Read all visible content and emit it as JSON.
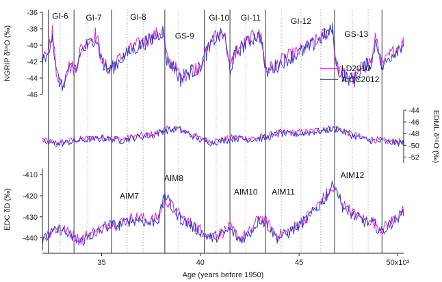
{
  "chart_data": {
    "type": "line",
    "x_axis": {
      "label": "Age (years before 1950)",
      "range": [
        32000,
        50300
      ],
      "ticks": [
        35000,
        40000,
        45000,
        50000
      ],
      "tick_labels": [
        "35",
        "40",
        "45",
        "50x10³"
      ]
    },
    "panels": [
      {
        "id": "ngrip",
        "ylabel": "NGRIP δ¹⁸O (‰)",
        "axis_side": "left",
        "ylim": [
          -46,
          -36
        ],
        "ticks": [
          -46,
          -44,
          -42,
          -40,
          -38,
          -36
        ],
        "tick_labels": [
          "-46",
          "-44",
          "-42",
          "-40",
          "-38",
          "-36"
        ]
      },
      {
        "id": "edml",
        "ylabel": "EDML δ¹⁸O (‰)",
        "axis_side": "right",
        "ylim": [
          -53,
          -44
        ],
        "ticks": [
          -52,
          -50,
          -48,
          -46,
          -44
        ],
        "tick_labels": [
          "-52",
          "-50",
          "-48",
          "-46",
          "-44"
        ]
      },
      {
        "id": "edc",
        "ylabel": "EDC δD (‰)",
        "axis_side": "left",
        "ylim": [
          -446,
          -407
        ],
        "ticks": [
          -440,
          -430,
          -420,
          -410
        ],
        "tick_labels": [
          "-440",
          "-430",
          "-420",
          "-410"
        ]
      }
    ],
    "series": [
      {
        "name": "LD2010",
        "color": "#e020d0",
        "panel_keypoints": {
          "ngrip": [
            [
              32000,
              -41.8
            ],
            [
              32200,
              -41.5
            ],
            [
              32500,
              -38.2
            ],
            [
              32700,
              -43.2
            ],
            [
              33000,
              -44.8
            ],
            [
              33300,
              -42.6
            ],
            [
              33700,
              -42.8
            ],
            [
              33900,
              -40.6
            ],
            [
              34300,
              -39.6
            ],
            [
              34700,
              -38.6
            ],
            [
              35100,
              -42.4
            ],
            [
              35400,
              -42.9
            ],
            [
              35700,
              -42.2
            ],
            [
              36100,
              -41.2
            ],
            [
              36600,
              -40.3
            ],
            [
              37100,
              -39.6
            ],
            [
              37600,
              -39.0
            ],
            [
              38100,
              -38.1
            ],
            [
              38300,
              -41.6
            ],
            [
              38700,
              -42.6
            ],
            [
              39000,
              -44.0
            ],
            [
              39500,
              -43.0
            ],
            [
              39900,
              -42.7
            ],
            [
              40300,
              -40.8
            ],
            [
              40700,
              -39.0
            ],
            [
              41200,
              -38.3
            ],
            [
              41500,
              -42.8
            ],
            [
              41800,
              -40.7
            ],
            [
              42300,
              -39.7
            ],
            [
              42800,
              -38.7
            ],
            [
              43100,
              -38.9
            ],
            [
              43300,
              -43.2
            ],
            [
              43800,
              -42.4
            ],
            [
              44300,
              -41.6
            ],
            [
              44800,
              -41.0
            ],
            [
              45300,
              -40.4
            ],
            [
              45800,
              -39.6
            ],
            [
              46300,
              -38.6
            ],
            [
              46700,
              -37.9
            ],
            [
              46900,
              -42.6
            ],
            [
              47300,
              -43.6
            ],
            [
              47800,
              -44.1
            ],
            [
              48300,
              -42.4
            ],
            [
              48700,
              -41.8
            ],
            [
              48900,
              -38.8
            ],
            [
              49200,
              -42.6
            ],
            [
              49600,
              -41.2
            ],
            [
              50000,
              -40.2
            ],
            [
              50300,
              -39.6
            ]
          ],
          "edml": [
            [
              32000,
              -49.2
            ],
            [
              32800,
              -49.6
            ],
            [
              33600,
              -49.1
            ],
            [
              34400,
              -48.8
            ],
            [
              35200,
              -48.6
            ],
            [
              36000,
              -49.0
            ],
            [
              36800,
              -48.4
            ],
            [
              37600,
              -48.1
            ],
            [
              38100,
              -47.4
            ],
            [
              38800,
              -47.0
            ],
            [
              39400,
              -47.8
            ],
            [
              40000,
              -48.9
            ],
            [
              40600,
              -49.3
            ],
            [
              41200,
              -49.0
            ],
            [
              41800,
              -48.6
            ],
            [
              42500,
              -48.8
            ],
            [
              43200,
              -48.6
            ],
            [
              44000,
              -47.8
            ],
            [
              44800,
              -47.9
            ],
            [
              45600,
              -47.6
            ],
            [
              46400,
              -47.2
            ],
            [
              46900,
              -47.0
            ],
            [
              47600,
              -48.0
            ],
            [
              48300,
              -48.8
            ],
            [
              49000,
              -49.1
            ],
            [
              49600,
              -49.3
            ],
            [
              50300,
              -49.4
            ]
          ],
          "edc": [
            [
              32000,
              -440
            ],
            [
              32400,
              -437
            ],
            [
              32900,
              -435
            ],
            [
              33400,
              -438
            ],
            [
              33900,
              -441
            ],
            [
              34400,
              -438
            ],
            [
              34900,
              -436
            ],
            [
              35400,
              -433
            ],
            [
              35900,
              -433
            ],
            [
              36400,
              -431
            ],
            [
              36900,
              -430
            ],
            [
              37400,
              -432
            ],
            [
              37900,
              -430
            ],
            [
              38200,
              -422
            ],
            [
              38500,
              -424
            ],
            [
              39000,
              -430
            ],
            [
              39500,
              -433
            ],
            [
              40000,
              -436
            ],
            [
              40500,
              -439
            ],
            [
              41000,
              -438
            ],
            [
              41500,
              -435
            ],
            [
              42000,
              -440
            ],
            [
              42500,
              -437
            ],
            [
              43000,
              -430
            ],
            [
              43400,
              -433
            ],
            [
              43900,
              -439
            ],
            [
              44400,
              -437
            ],
            [
              44900,
              -434
            ],
            [
              45400,
              -430
            ],
            [
              45900,
              -425
            ],
            [
              46400,
              -419
            ],
            [
              46800,
              -417
            ],
            [
              47200,
              -424
            ],
            [
              47700,
              -428
            ],
            [
              48200,
              -431
            ],
            [
              48700,
              -432
            ],
            [
              49200,
              -436
            ],
            [
              49700,
              -432
            ],
            [
              50300,
              -427
            ]
          ]
        }
      },
      {
        "name": "AICC2012",
        "color": "#2a3fbf",
        "panel_keypoints": {
          "ngrip": [
            [
              32000,
              -42.0
            ],
            [
              32200,
              -41.7
            ],
            [
              32500,
              -38.6
            ],
            [
              32700,
              -43.4
            ],
            [
              33000,
              -45.2
            ],
            [
              33300,
              -43.0
            ],
            [
              33700,
              -43.2
            ],
            [
              33900,
              -41.0
            ],
            [
              34300,
              -40.0
            ],
            [
              34700,
              -39.0
            ],
            [
              35100,
              -42.6
            ],
            [
              35400,
              -43.1
            ],
            [
              35700,
              -42.4
            ],
            [
              36100,
              -41.4
            ],
            [
              36600,
              -40.5
            ],
            [
              37100,
              -39.8
            ],
            [
              37600,
              -39.2
            ],
            [
              38100,
              -38.3
            ],
            [
              38300,
              -41.8
            ],
            [
              38700,
              -42.8
            ],
            [
              39000,
              -44.2
            ],
            [
              39500,
              -43.2
            ],
            [
              39900,
              -42.9
            ],
            [
              40300,
              -41.0
            ],
            [
              40700,
              -39.3
            ],
            [
              41200,
              -38.6
            ],
            [
              41500,
              -43.0
            ],
            [
              41800,
              -40.9
            ],
            [
              42300,
              -39.9
            ],
            [
              42800,
              -38.9
            ],
            [
              43100,
              -39.1
            ],
            [
              43300,
              -43.4
            ],
            [
              43800,
              -42.6
            ],
            [
              44300,
              -41.8
            ],
            [
              44800,
              -41.2
            ],
            [
              45300,
              -40.6
            ],
            [
              45800,
              -39.8
            ],
            [
              46300,
              -38.8
            ],
            [
              46700,
              -38.1
            ],
            [
              46900,
              -42.8
            ],
            [
              47300,
              -43.8
            ],
            [
              47800,
              -44.3
            ],
            [
              48300,
              -42.6
            ],
            [
              48700,
              -42.0
            ],
            [
              48900,
              -39.0
            ],
            [
              49200,
              -42.8
            ],
            [
              49600,
              -41.4
            ],
            [
              50000,
              -40.4
            ],
            [
              50300,
              -39.8
            ]
          ],
          "edml": [
            [
              32000,
              -49.4
            ],
            [
              32800,
              -49.8
            ],
            [
              33600,
              -49.3
            ],
            [
              34400,
              -49.0
            ],
            [
              35200,
              -48.8
            ],
            [
              36000,
              -49.2
            ],
            [
              36800,
              -48.6
            ],
            [
              37600,
              -48.3
            ],
            [
              38100,
              -47.6
            ],
            [
              38800,
              -47.2
            ],
            [
              39400,
              -48.0
            ],
            [
              40000,
              -49.1
            ],
            [
              40600,
              -49.5
            ],
            [
              41200,
              -49.2
            ],
            [
              41800,
              -48.8
            ],
            [
              42500,
              -49.0
            ],
            [
              43200,
              -48.8
            ],
            [
              44000,
              -48.0
            ],
            [
              44800,
              -48.1
            ],
            [
              45600,
              -47.8
            ],
            [
              46400,
              -47.4
            ],
            [
              46900,
              -47.2
            ],
            [
              47600,
              -48.2
            ],
            [
              48300,
              -49.0
            ],
            [
              49000,
              -49.3
            ],
            [
              49600,
              -49.5
            ],
            [
              50300,
              -49.6
            ]
          ],
          "edc": [
            [
              32000,
              -442
            ],
            [
              32400,
              -438
            ],
            [
              32900,
              -436
            ],
            [
              33400,
              -439
            ],
            [
              33900,
              -442
            ],
            [
              34400,
              -439
            ],
            [
              34900,
              -437
            ],
            [
              35400,
              -434
            ],
            [
              35900,
              -434
            ],
            [
              36400,
              -432
            ],
            [
              36900,
              -431
            ],
            [
              37400,
              -433
            ],
            [
              37900,
              -431
            ],
            [
              38200,
              -419
            ],
            [
              38500,
              -425
            ],
            [
              39000,
              -431
            ],
            [
              39500,
              -434
            ],
            [
              40000,
              -437
            ],
            [
              40500,
              -440
            ],
            [
              41000,
              -439
            ],
            [
              41500,
              -436
            ],
            [
              42000,
              -441
            ],
            [
              42500,
              -438
            ],
            [
              43000,
              -431
            ],
            [
              43400,
              -434
            ],
            [
              43900,
              -440
            ],
            [
              44400,
              -438
            ],
            [
              44900,
              -435
            ],
            [
              45400,
              -431
            ],
            [
              45900,
              -426
            ],
            [
              46400,
              -420
            ],
            [
              46800,
              -414
            ],
            [
              47200,
              -425
            ],
            [
              47700,
              -429
            ],
            [
              48200,
              -432
            ],
            [
              48700,
              -433
            ],
            [
              49200,
              -437
            ],
            [
              49700,
              -433
            ],
            [
              50300,
              -428
            ]
          ]
        }
      }
    ],
    "event_lines": [
      32300,
      33600,
      35500,
      38200,
      40200,
      41500,
      43300,
      46800,
      49200
    ],
    "dotted_lines": [
      32900,
      34300,
      36300,
      37100,
      38900,
      40800,
      42300,
      44100,
      45100,
      46100,
      47700,
      48500
    ],
    "event_labels": [
      {
        "text": "GI-6",
        "x": 32900,
        "panel": "ngrip",
        "y": -36.8
      },
      {
        "text": "GI-7",
        "x": 34600,
        "panel": "ngrip",
        "y": -37.0
      },
      {
        "text": "GI-8",
        "x": 36850,
        "panel": "ngrip",
        "y": -36.9
      },
      {
        "text": "GS-9",
        "x": 39200,
        "panel": "ngrip",
        "y": -39.2
      },
      {
        "text": "GI-10",
        "x": 40950,
        "panel": "ngrip",
        "y": -37.0
      },
      {
        "text": "GI-11",
        "x": 42550,
        "panel": "ngrip",
        "y": -37.0
      },
      {
        "text": "GI-12",
        "x": 45100,
        "panel": "ngrip",
        "y": -37.4
      },
      {
        "text": "GS-13",
        "x": 47900,
        "panel": "ngrip",
        "y": -39.0
      },
      {
        "text": "AIM7",
        "x": 36400,
        "panel": "edc",
        "y": -421.5
      },
      {
        "text": "AIM8",
        "x": 38650,
        "panel": "edc",
        "y": -413
      },
      {
        "text": "AIM10",
        "x": 42300,
        "panel": "edc",
        "y": -419.5
      },
      {
        "text": "AIM11",
        "x": 44200,
        "panel": "edc",
        "y": -419.5
      },
      {
        "text": "AIM12",
        "x": 47700,
        "panel": "edc",
        "y": -411.5
      }
    ],
    "legend": {
      "placement": "right-center",
      "entries": [
        "LD2010",
        "AICC2012"
      ]
    },
    "grid": false
  }
}
